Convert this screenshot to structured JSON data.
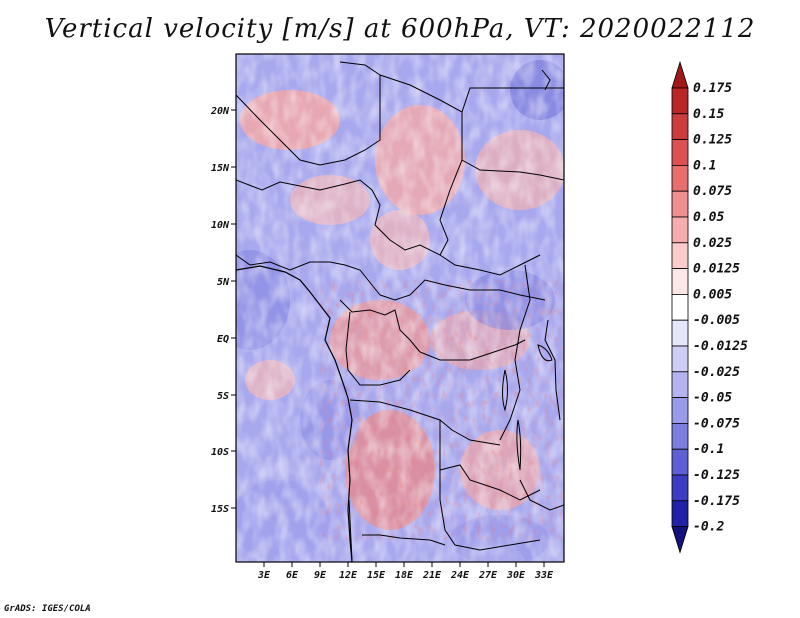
{
  "title": "Vertical velocity [m/s] at 600hPa, VT: 2020022112",
  "footer": "GrADS: IGES/COLA",
  "map": {
    "region": "Central Africa",
    "lat_range": [
      -19,
      24.5
    ],
    "lon_range": [
      0,
      35
    ],
    "lat_ticks": [
      "20N",
      "15N",
      "10N",
      "5N",
      "EQ",
      "5S",
      "10S",
      "15S"
    ],
    "lon_ticks": [
      "3E",
      "6E",
      "9E",
      "12E",
      "15E",
      "18E",
      "21E",
      "24E",
      "27E",
      "30E",
      "33E"
    ]
  },
  "colorbar": {
    "labels": [
      "0.175",
      "0.15",
      "0.125",
      "0.1",
      "0.075",
      "0.05",
      "0.025",
      "0.0125",
      "0.005",
      "-0.005",
      "-0.0125",
      "-0.025",
      "-0.05",
      "-0.075",
      "-0.1",
      "-0.125",
      "-0.175",
      "-0.2"
    ],
    "colors": [
      "#a01818",
      "#b82626",
      "#cc3c3c",
      "#dc5252",
      "#e86e6e",
      "#f08e8e",
      "#f6acac",
      "#fbcccc",
      "#fde6e6",
      "#ffffff",
      "#e6e6fb",
      "#cdcdf6",
      "#b3b3f0",
      "#9a9aea",
      "#7e7ee2",
      "#5f5fd6",
      "#3d3dc4",
      "#2222a8",
      "#12127a"
    ]
  }
}
